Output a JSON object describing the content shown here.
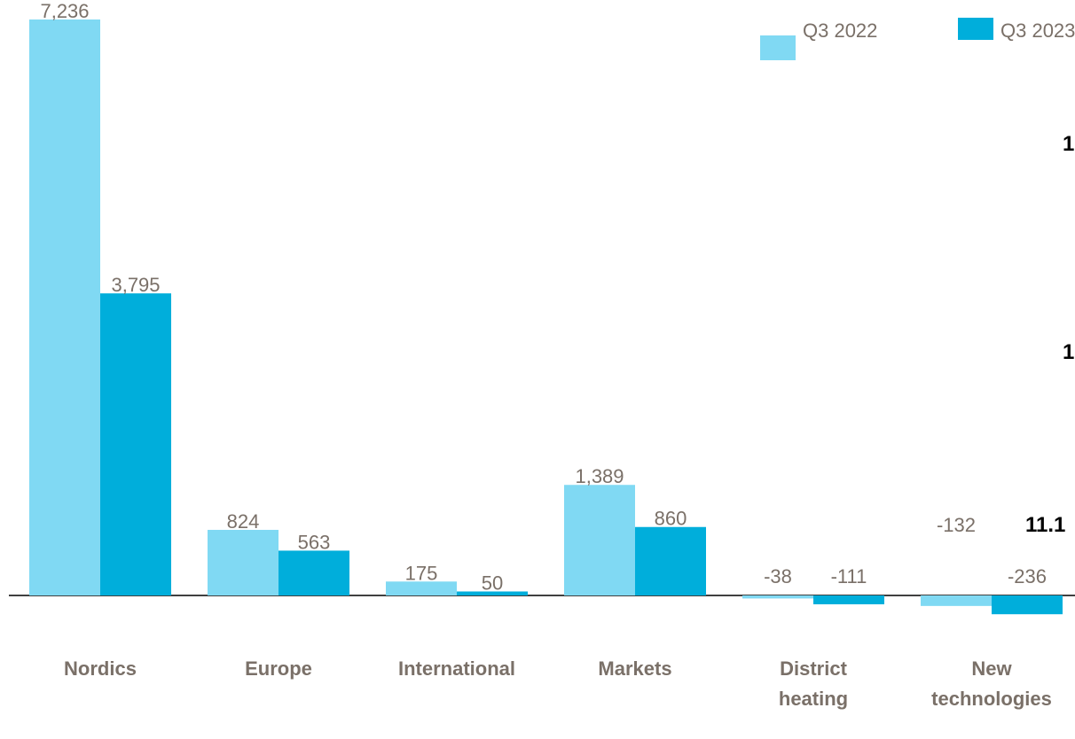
{
  "chart_data": {
    "type": "bar",
    "categories": [
      "Nordics",
      "Europe",
      "International",
      "Markets",
      "District heating",
      "New technologies"
    ],
    "series": [
      {
        "name": "Q3 2022",
        "color": "#80d9f3",
        "values": [
          7236,
          824,
          175,
          1389,
          -38,
          -132
        ],
        "value_labels": [
          "7,236",
          "824",
          "175",
          "1,389",
          "-38",
          "-132"
        ]
      },
      {
        "name": "Q3 2023",
        "color": "#00aedb",
        "values": [
          3795,
          563,
          50,
          860,
          -111,
          -236
        ],
        "value_labels": [
          "3,795",
          "563",
          "50",
          "860",
          "-111",
          "-236"
        ]
      }
    ],
    "annotations": [
      "1",
      "1",
      "11.1"
    ]
  }
}
